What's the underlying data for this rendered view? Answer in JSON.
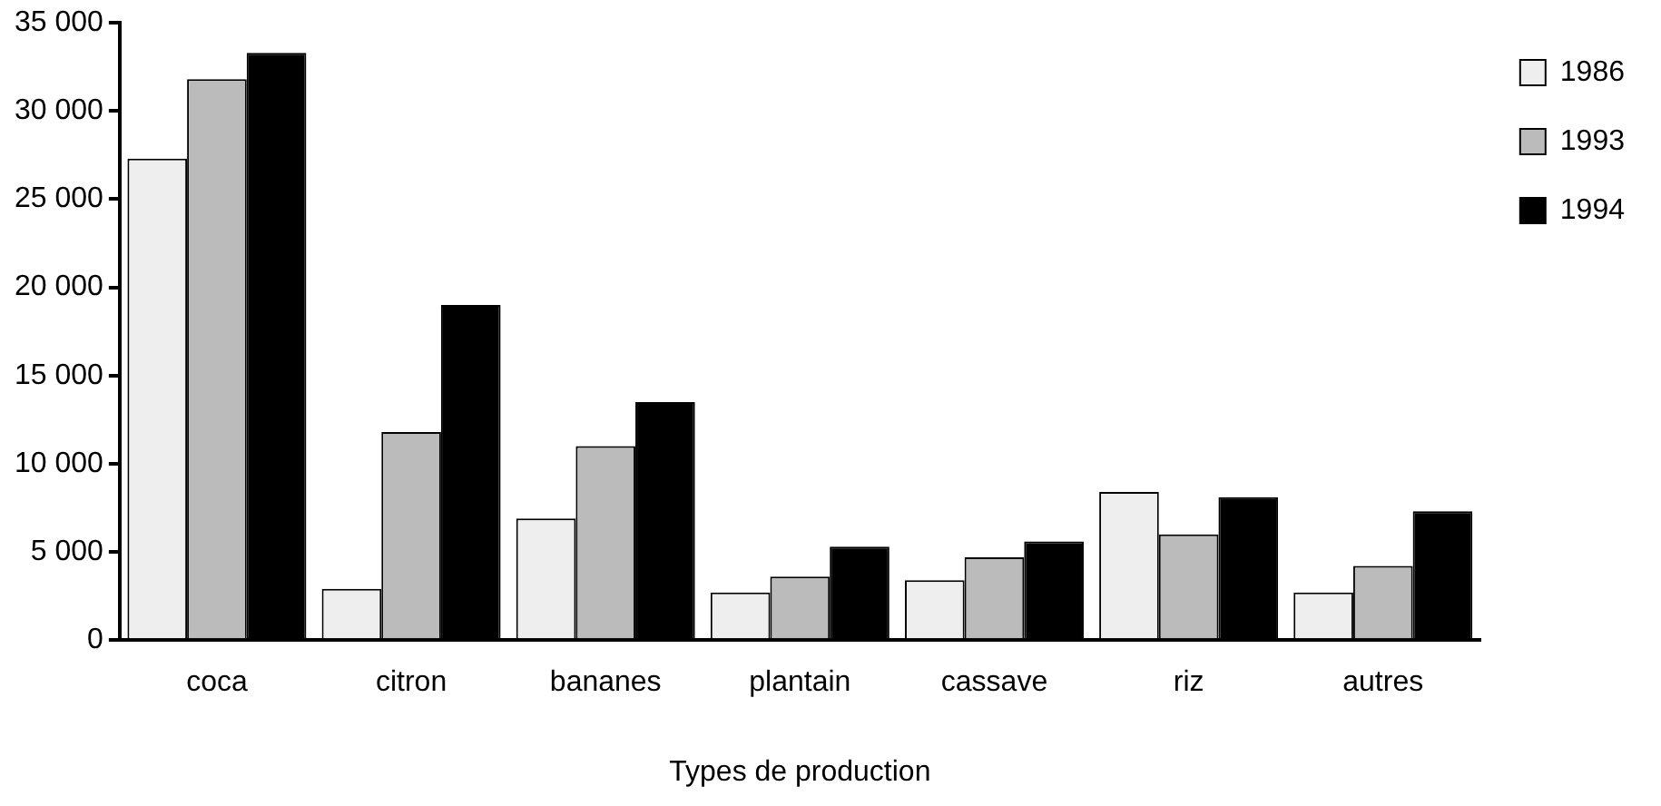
{
  "chart_data": {
    "type": "bar",
    "xlabel": "Types de production",
    "categories": [
      "coca",
      "citron",
      "bananes",
      "plantain",
      "cassave",
      "riz",
      "autres"
    ],
    "series": [
      {
        "name": "1986",
        "color": "#eeeeee",
        "values": [
          27300,
          2900,
          6900,
          2700,
          3400,
          8400,
          2700
        ]
      },
      {
        "name": "1993",
        "color": "#bbbbbb",
        "values": [
          31800,
          11800,
          11000,
          3600,
          4700,
          6000,
          4200
        ]
      },
      {
        "name": "1994",
        "color": "#000000",
        "values": [
          33300,
          19000,
          13500,
          5300,
          5600,
          8100,
          7300
        ]
      }
    ],
    "ylim": [
      0,
      35000
    ],
    "yticks": [
      0,
      {
        "value": 5000,
        "label": "5 000"
      },
      {
        "value": 10000,
        "label": "10 000"
      },
      {
        "value": 15000,
        "label": "15 000"
      },
      {
        "value": 20000,
        "label": "20 000"
      },
      {
        "value": 25000,
        "label": "25 000"
      },
      {
        "value": 30000,
        "label": "30 000"
      },
      {
        "value": 35000,
        "label": "35 000"
      }
    ],
    "grid": false,
    "legend": "top right"
  }
}
